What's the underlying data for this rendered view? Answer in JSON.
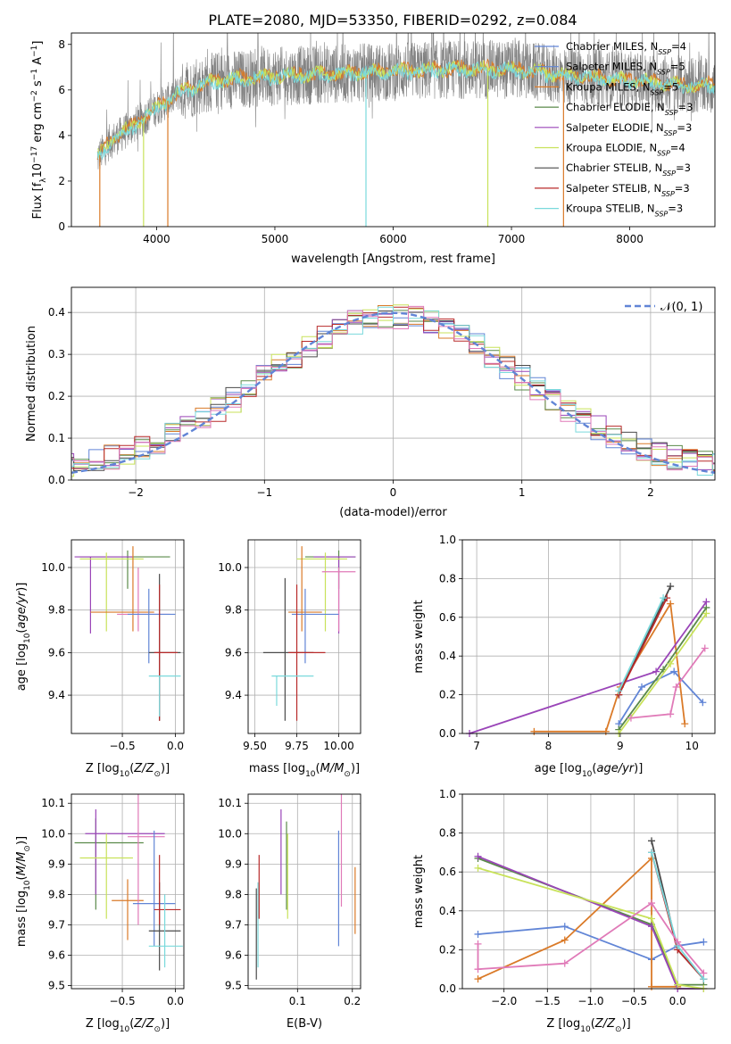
{
  "figure": {
    "title": "PLATE=2080, MJD=53350, FIBERID=0292, z=0.084"
  },
  "colors": {
    "c0": "#6185d6",
    "c1": "#da7a28",
    "c2": "#5a8a4a",
    "c3": "#9a45b8",
    "c4": "#c8e25a",
    "c5": "#4a4a4a",
    "c6": "#b82a2a",
    "c7": "#7ad9dc",
    "c8": "#e07ab8",
    "c9": "#808080"
  },
  "legend_spectrum": [
    {
      "label": "Chabrier MILES, N",
      "sub": "SSP",
      "tail": "=4",
      "color": "#6185d6"
    },
    {
      "label": "Salpeter MILES, N",
      "sub": "SSP",
      "tail": "=5",
      "color": "#6185d6"
    },
    {
      "label": "Kroupa MILES, N",
      "sub": "SSP",
      "tail": "=5",
      "color": "#da7a28"
    },
    {
      "label": "Chabrier ELODIE, N",
      "sub": "SSP",
      "tail": "=3",
      "color": "#5a8a4a"
    },
    {
      "label": "Salpeter ELODIE, N",
      "sub": "SSP",
      "tail": "=3",
      "color": "#9a45b8"
    },
    {
      "label": "Kroupa ELODIE, N",
      "sub": "SSP",
      "tail": "=4",
      "color": "#c8e25a"
    },
    {
      "label": "Chabrier STELIB, N",
      "sub": "SSP",
      "tail": "=3",
      "color": "#4a4a4a"
    },
    {
      "label": "Salpeter STELIB, N",
      "sub": "SSP",
      "tail": "=3",
      "color": "#b82a2a"
    },
    {
      "label": "Kroupa STELIB, N",
      "sub": "SSP",
      "tail": "=3",
      "color": "#7ad9dc"
    }
  ],
  "legend_residual": {
    "label": "𝒩(0, 1)",
    "color": "#6185d6"
  },
  "chart_data": [
    {
      "type": "line",
      "name": "spectrum",
      "xlabel": "wavelength [Angstrom, rest frame]",
      "ylabel": "Flux [f_λ 10^-17 erg cm^-2 s^-1 A^-1]",
      "xlim": [
        3280,
        8720
      ],
      "ylim": [
        0,
        8.5
      ],
      "xticks": [
        "4000",
        "5000",
        "6000",
        "7000",
        "8000"
      ],
      "yticks": [
        "0",
        "2",
        "4",
        "6",
        "8"
      ],
      "data_envelope": [
        [
          3500,
          3.0
        ],
        [
          3600,
          3.7
        ],
        [
          3800,
          4.4
        ],
        [
          4000,
          5.2
        ],
        [
          4200,
          5.9
        ],
        [
          4500,
          6.4
        ],
        [
          5000,
          6.6
        ],
        [
          5500,
          6.7
        ],
        [
          6000,
          6.8
        ],
        [
          6500,
          6.9
        ],
        [
          7000,
          6.9
        ],
        [
          7500,
          6.6
        ],
        [
          8000,
          6.4
        ],
        [
          8500,
          6.2
        ],
        [
          8720,
          6.2
        ]
      ],
      "grid": false,
      "legend": "top-right"
    },
    {
      "type": "histogram",
      "name": "residuals",
      "xlabel": "(data-model)/error",
      "ylabel": "Normed distribution",
      "xlim": [
        -2.5,
        2.5
      ],
      "ylim": [
        0,
        0.46
      ],
      "xticks": [
        "−2",
        "−1",
        "0",
        "1",
        "2"
      ],
      "yticks": [
        "0.0",
        "0.1",
        "0.2",
        "0.3",
        "0.4"
      ],
      "bins": 44,
      "grid": true,
      "legend": "top-right"
    },
    {
      "type": "errorbar",
      "name": "age-vs-Z",
      "xlabel": "Z [log10(Z/Z☉)]",
      "ylabel": "age [log10(age/yr)]",
      "xlim": [
        -0.98,
        0.08
      ],
      "ylim": [
        9.22,
        10.13
      ],
      "xticks": [
        "−0.5",
        "0.0"
      ],
      "yticks": [
        "9.4",
        "9.6",
        "9.8",
        "10.0"
      ],
      "points": [
        {
          "x": -0.45,
          "y": 10.05,
          "dx": [
            -0.9,
            -0.05
          ],
          "dy": [
            9.9,
            10.08
          ],
          "color": "#5a8a4a"
        },
        {
          "x": -0.8,
          "y": 10.05,
          "dx": [
            -0.95,
            -0.4
          ],
          "dy": [
            9.69,
            10.05
          ],
          "color": "#9a45b8"
        },
        {
          "x": -0.65,
          "y": 10.04,
          "dx": [
            -0.9,
            -0.3
          ],
          "dy": [
            9.7,
            10.07
          ],
          "color": "#c8e25a"
        },
        {
          "x": -0.4,
          "y": 9.79,
          "dx": [
            -0.8,
            -0.2
          ],
          "dy": [
            9.7,
            10.1
          ],
          "color": "#da7a28"
        },
        {
          "x": -0.35,
          "y": 9.78,
          "dx": [
            -0.55,
            -0.05
          ],
          "dy": [
            9.7,
            10.0
          ],
          "color": "#e07ab8"
        },
        {
          "x": -0.25,
          "y": 9.78,
          "dx": [
            -0.45,
            -0.0
          ],
          "dy": [
            9.55,
            9.9
          ],
          "color": "#6185d6"
        },
        {
          "x": -0.15,
          "y": 9.6,
          "dx": [
            -0.25,
            0.05
          ],
          "dy": [
            9.28,
            9.97
          ],
          "color": "#4a4a4a"
        },
        {
          "x": -0.15,
          "y": 9.6,
          "dx": [
            -0.2,
            0.02
          ],
          "dy": [
            9.28,
            9.92
          ],
          "color": "#b82a2a"
        },
        {
          "x": -0.15,
          "y": 9.49,
          "dx": [
            -0.25,
            0.05
          ],
          "dy": [
            9.3,
            9.49
          ],
          "color": "#7ad9dc"
        }
      ],
      "grid": true
    },
    {
      "type": "errorbar",
      "name": "age-vs-mass",
      "xlabel": "mass [log10(M/M☉)]",
      "ylabel": "",
      "xlim": [
        9.46,
        10.13
      ],
      "ylim": [
        9.22,
        10.13
      ],
      "xticks": [
        "9.50",
        "9.75",
        "10.00"
      ],
      "yticks": [
        "9.4",
        "9.6",
        "9.8",
        "10.0"
      ],
      "points": [
        {
          "x": 10.0,
          "y": 10.05,
          "dx": [
            9.8,
            10.1
          ],
          "dy": [
            9.9,
            10.08
          ],
          "color": "#5a8a4a"
        },
        {
          "x": 10.0,
          "y": 10.05,
          "dx": [
            9.85,
            10.1
          ],
          "dy": [
            9.69,
            10.05
          ],
          "color": "#9a45b8"
        },
        {
          "x": 9.92,
          "y": 10.04,
          "dx": [
            9.75,
            10.05
          ],
          "dy": [
            9.7,
            10.07
          ],
          "color": "#c8e25a"
        },
        {
          "x": 9.78,
          "y": 9.79,
          "dx": [
            9.7,
            9.9
          ],
          "dy": [
            9.7,
            10.1
          ],
          "color": "#da7a28"
        },
        {
          "x": 10.0,
          "y": 9.98,
          "dx": [
            9.9,
            10.1
          ],
          "dy": [
            9.7,
            10.0
          ],
          "color": "#e07ab8"
        },
        {
          "x": 9.8,
          "y": 9.78,
          "dx": [
            9.72,
            10.0
          ],
          "dy": [
            9.55,
            9.9
          ],
          "color": "#6185d6"
        },
        {
          "x": 9.68,
          "y": 9.6,
          "dx": [
            9.55,
            9.85
          ],
          "dy": [
            9.28,
            9.95
          ],
          "color": "#4a4a4a"
        },
        {
          "x": 9.75,
          "y": 9.6,
          "dx": [
            9.7,
            9.92
          ],
          "dy": [
            9.28,
            9.92
          ],
          "color": "#b82a2a"
        },
        {
          "x": 9.63,
          "y": 9.49,
          "dx": [
            9.6,
            9.85
          ],
          "dy": [
            9.35,
            9.49
          ],
          "color": "#7ad9dc"
        }
      ],
      "grid": true
    },
    {
      "type": "line",
      "name": "mass-weight-vs-age",
      "xlabel": "age [log10(age/yr)]",
      "ylabel": "mass weight",
      "xlim": [
        6.8,
        10.32
      ],
      "ylim": [
        0,
        1.0
      ],
      "xticks": [
        "7",
        "8",
        "9",
        "10"
      ],
      "yticks": [
        "0.0",
        "0.2",
        "0.4",
        "0.6",
        "0.8",
        "1.0"
      ],
      "series": [
        {
          "color": "#6185d6",
          "x": [
            8.98,
            9.3,
            9.75,
            10.15
          ],
          "y": [
            0.05,
            0.24,
            0.32,
            0.16
          ]
        },
        {
          "color": "#da7a28",
          "x": [
            7.8,
            8.8,
            9.0,
            9.7,
            9.9
          ],
          "y": [
            0.01,
            0.01,
            0.24,
            0.67,
            0.05
          ]
        },
        {
          "color": "#5a8a4a",
          "x": [
            8.98,
            9.6,
            10.2
          ],
          "y": [
            0.02,
            0.33,
            0.65
          ]
        },
        {
          "color": "#9a45b8",
          "x": [
            6.9,
            9.5,
            10.2
          ],
          "y": [
            0.0,
            0.32,
            0.68
          ]
        },
        {
          "color": "#c8e25a",
          "x": [
            8.98,
            9.7,
            10.2
          ],
          "y": [
            0.0,
            0.36,
            0.62
          ]
        },
        {
          "color": "#4a4a4a",
          "x": [
            8.98,
            9.7
          ],
          "y": [
            0.2,
            0.76
          ]
        },
        {
          "color": "#b82a2a",
          "x": [
            8.98,
            9.65
          ],
          "y": [
            0.2,
            0.7
          ]
        },
        {
          "color": "#7ad9dc",
          "x": [
            8.98,
            9.6
          ],
          "y": [
            0.22,
            0.7
          ]
        },
        {
          "color": "#e07ab8",
          "x": [
            9.15,
            9.7,
            9.78,
            10.18
          ],
          "y": [
            0.08,
            0.1,
            0.24,
            0.44
          ]
        }
      ],
      "grid": true
    },
    {
      "type": "errorbar",
      "name": "mass-vs-Z",
      "xlabel": "Z [log10(Z/Z☉)]",
      "ylabel": "mass [log10(M/M☉)]",
      "xlim": [
        -0.98,
        0.08
      ],
      "ylim": [
        9.49,
        10.13
      ],
      "xticks": [
        "−0.5",
        "0.0"
      ],
      "yticks": [
        "9.5",
        "9.6",
        "9.7",
        "9.8",
        "9.9",
        "10.0",
        "10.1"
      ],
      "points": [
        {
          "x": -0.75,
          "y": 9.97,
          "dx": [
            -0.95,
            -0.3
          ],
          "dy": [
            9.75,
            10.05
          ],
          "color": "#5a8a4a"
        },
        {
          "x": -0.75,
          "y": 10.0,
          "dx": [
            -0.85,
            -0.1
          ],
          "dy": [
            9.8,
            10.08
          ],
          "color": "#9a45b8"
        },
        {
          "x": -0.65,
          "y": 9.92,
          "dx": [
            -0.9,
            -0.4
          ],
          "dy": [
            9.72,
            10.0
          ],
          "color": "#c8e25a"
        },
        {
          "x": -0.45,
          "y": 9.78,
          "dx": [
            -0.6,
            -0.3
          ],
          "dy": [
            9.65,
            9.85
          ],
          "color": "#da7a28"
        },
        {
          "x": -0.35,
          "y": 9.99,
          "dx": [
            -0.45,
            -0.1
          ],
          "dy": [
            9.7,
            10.13
          ],
          "color": "#e07ab8"
        },
        {
          "x": -0.2,
          "y": 9.77,
          "dx": [
            -0.4,
            0.0
          ],
          "dy": [
            9.63,
            10.01
          ],
          "color": "#6185d6"
        },
        {
          "x": -0.15,
          "y": 9.68,
          "dx": [
            -0.25,
            0.05
          ],
          "dy": [
            9.55,
            9.84
          ],
          "color": "#4a4a4a"
        },
        {
          "x": -0.15,
          "y": 9.75,
          "dx": [
            -0.2,
            0.05
          ],
          "dy": [
            9.7,
            9.93
          ],
          "color": "#b82a2a"
        },
        {
          "x": -0.1,
          "y": 9.63,
          "dx": [
            -0.25,
            0.07
          ],
          "dy": [
            9.56,
            9.8
          ],
          "color": "#7ad9dc"
        }
      ],
      "grid": true
    },
    {
      "type": "errorbar",
      "name": "mass-vs-EBV",
      "xlabel": "E(B-V)",
      "ylabel": "",
      "xlim": [
        0.01,
        0.215
      ],
      "ylim": [
        9.49,
        10.13
      ],
      "xticks": [
        "0.1",
        "0.2"
      ],
      "yticks": [
        "9.5",
        "9.6",
        "9.7",
        "9.8",
        "9.9",
        "10.0",
        "10.1"
      ],
      "points": [
        {
          "x": 0.025,
          "y": 9.65,
          "dy": [
            9.52,
            9.82
          ],
          "color": "#4a4a4a"
        },
        {
          "x": 0.028,
          "y": 9.7,
          "dy": [
            9.56,
            9.84
          ],
          "color": "#7ad9dc"
        },
        {
          "x": 0.03,
          "y": 9.85,
          "dy": [
            9.72,
            9.93
          ],
          "color": "#b82a2a"
        },
        {
          "x": 0.07,
          "y": 9.95,
          "dy": [
            9.8,
            10.08
          ],
          "color": "#9a45b8"
        },
        {
          "x": 0.08,
          "y": 9.88,
          "dy": [
            9.75,
            10.04
          ],
          "color": "#5a8a4a"
        },
        {
          "x": 0.082,
          "y": 9.85,
          "dy": [
            9.72,
            10.0
          ],
          "color": "#c8e25a"
        },
        {
          "x": 0.175,
          "y": 9.8,
          "dy": [
            9.63,
            10.01
          ],
          "color": "#6185d6"
        },
        {
          "x": 0.18,
          "y": 9.95,
          "dy": [
            9.76,
            10.13
          ],
          "color": "#e07ab8"
        },
        {
          "x": 0.205,
          "y": 9.78,
          "dy": [
            9.67,
            9.89
          ],
          "color": "#da7a28"
        }
      ],
      "grid": true
    },
    {
      "type": "line",
      "name": "mass-weight-vs-Z",
      "xlabel": "Z [log10(Z/Z☉)]",
      "ylabel": "mass weight",
      "xlim": [
        -2.48,
        0.43
      ],
      "ylim": [
        0,
        1.0
      ],
      "xticks": [
        "−2.0",
        "−1.5",
        "−1.0",
        "−0.5",
        "0.0"
      ],
      "yticks": [
        "0.0",
        "0.2",
        "0.4",
        "0.6",
        "0.8",
        "1.0"
      ],
      "series": [
        {
          "color": "#6185d6",
          "x": [
            -2.3,
            -1.3,
            -0.3,
            0.0,
            0.3
          ],
          "y": [
            0.28,
            0.32,
            0.15,
            0.22,
            0.24
          ]
        },
        {
          "color": "#da7a28",
          "x": [
            -2.3,
            -1.3,
            -0.3,
            -0.3,
            0.0
          ],
          "y": [
            0.05,
            0.25,
            0.67,
            0.01,
            0.01
          ]
        },
        {
          "color": "#5a8a4a",
          "x": [
            -2.3,
            -0.3,
            0.0,
            0.3
          ],
          "y": [
            0.67,
            0.33,
            0.02,
            0.02
          ]
        },
        {
          "color": "#9a45b8",
          "x": [
            -2.3,
            -0.3,
            0.0,
            0.3
          ],
          "y": [
            0.68,
            0.32,
            0.0,
            0.0
          ]
        },
        {
          "color": "#c8e25a",
          "x": [
            -2.3,
            -0.3,
            0.0,
            0.3
          ],
          "y": [
            0.62,
            0.36,
            0.02,
            0.0
          ]
        },
        {
          "color": "#4a4a4a",
          "x": [
            -0.3,
            0.0,
            0.3
          ],
          "y": [
            0.76,
            0.2,
            0.05
          ]
        },
        {
          "color": "#b82a2a",
          "x": [
            -0.3,
            0.0,
            0.3
          ],
          "y": [
            0.7,
            0.2,
            0.05
          ]
        },
        {
          "color": "#7ad9dc",
          "x": [
            -0.3,
            0.0,
            0.3
          ],
          "y": [
            0.7,
            0.22,
            0.05
          ]
        },
        {
          "color": "#e07ab8",
          "x": [
            -2.3,
            -2.3,
            -1.3,
            -0.3,
            0.0,
            0.3
          ],
          "y": [
            0.23,
            0.1,
            0.13,
            0.44,
            0.24,
            0.08
          ]
        }
      ],
      "grid": true
    }
  ]
}
